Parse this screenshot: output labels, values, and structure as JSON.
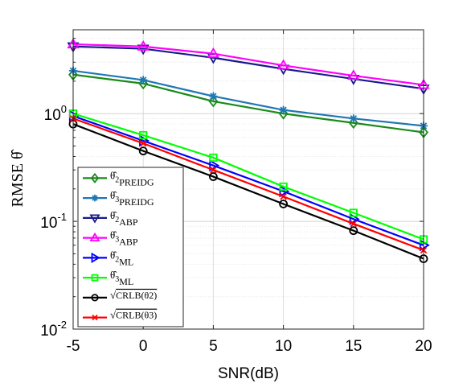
{
  "chart_data": {
    "type": "line",
    "xlabel": "SNR(dB)",
    "ylabel": "RMSE θ̂",
    "yscale": "log",
    "xlim": [
      -5,
      20
    ],
    "ylim": [
      0.01,
      6
    ],
    "xticks": [
      "-5",
      "0",
      "5",
      "10",
      "15",
      "20"
    ],
    "yticks": [
      {
        "value": 0.01,
        "base": "10",
        "exp": "-2"
      },
      {
        "value": 0.1,
        "base": "10",
        "exp": "-1"
      },
      {
        "value": 1,
        "base": "10",
        "exp": "0"
      }
    ],
    "grid": true,
    "legend_position": "bottom-left",
    "x": [
      -5,
      0,
      5,
      10,
      15,
      20
    ],
    "series": [
      {
        "name": "θ̂2 PREIDG",
        "sym": "θ̂",
        "sub": "2",
        "tag": "PREIDG",
        "color": "#1a8a1a",
        "marker": "diamond",
        "values": [
          2.3,
          1.9,
          1.3,
          1.0,
          0.82,
          0.67
        ]
      },
      {
        "name": "θ̂3 PREIDG",
        "sym": "θ̂",
        "sub": "3",
        "tag": "PREIDG",
        "color": "#1f77b4",
        "marker": "star",
        "values": [
          2.5,
          2.05,
          1.45,
          1.08,
          0.9,
          0.77
        ]
      },
      {
        "name": "θ̂2 ABP",
        "sym": "θ̂",
        "sub": "2",
        "tag": "ABP",
        "color": "#1a1a8c",
        "marker": "triangle-down",
        "values": [
          4.2,
          4.0,
          3.3,
          2.6,
          2.1,
          1.7
        ]
      },
      {
        "name": "θ̂3 ABP",
        "sym": "θ̂",
        "sub": "3",
        "tag": "ABP",
        "color": "#ff00ff",
        "marker": "triangle-up",
        "values": [
          4.4,
          4.2,
          3.6,
          2.8,
          2.25,
          1.85
        ]
      },
      {
        "name": "θ̂2 ML",
        "sym": "θ̂",
        "sub": "2",
        "tag": "ML",
        "color": "#0000ff",
        "marker": "triangle-right",
        "values": [
          0.95,
          0.56,
          0.33,
          0.19,
          0.105,
          0.06
        ]
      },
      {
        "name": "θ̂3 ML",
        "sym": "θ̂",
        "sub": "3",
        "tag": "ML",
        "color": "#00ff00",
        "marker": "square",
        "values": [
          1.0,
          0.63,
          0.39,
          0.21,
          0.12,
          0.068
        ]
      },
      {
        "name": "√CRLB(θ2)",
        "sym": "√",
        "sub": "",
        "tag": "CRLB(θ2)",
        "color": "#000000",
        "marker": "circle",
        "values": [
          0.8,
          0.45,
          0.26,
          0.145,
          0.082,
          0.045
        ]
      },
      {
        "name": "√CRLB(θ3)",
        "sym": "√",
        "sub": "",
        "tag": "CRLB(θ3)",
        "color": "#ff0000",
        "marker": "x",
        "values": [
          0.9,
          0.53,
          0.3,
          0.17,
          0.095,
          0.054
        ]
      }
    ]
  }
}
